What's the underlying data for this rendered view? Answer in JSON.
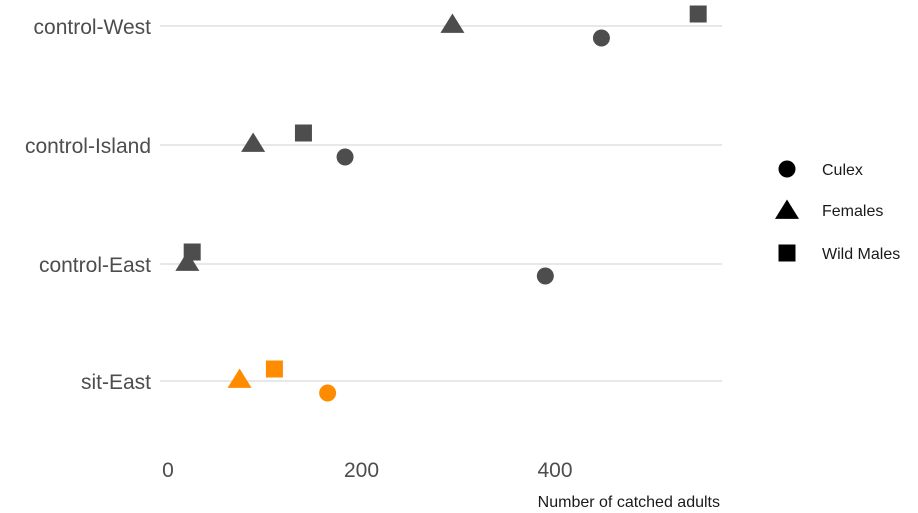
{
  "chart_data": {
    "type": "scatter",
    "title": "",
    "xlabel": "Number of catched adults",
    "ylabel": "",
    "xlim": [
      -8,
      570
    ],
    "xticks": [
      0,
      200,
      400
    ],
    "categories": [
      "control-West",
      "control-Island",
      "control-East",
      "sit-East"
    ],
    "grid": "horizontal",
    "legend": {
      "position": "right",
      "entries": [
        {
          "name": "Culex",
          "shape": "circle"
        },
        {
          "name": "Females",
          "shape": "triangle"
        },
        {
          "name": "Wild Males",
          "shape": "square"
        }
      ]
    },
    "colors": {
      "control": "#4d4d4d",
      "sit": "#ff8c00"
    },
    "series": [
      {
        "name": "Culex",
        "shape": "circle",
        "values": [
          448,
          183,
          390,
          165
        ]
      },
      {
        "name": "Females",
        "shape": "triangle",
        "values": [
          294,
          88,
          20,
          74
        ]
      },
      {
        "name": "Wild Males",
        "shape": "square",
        "values": [
          548,
          140,
          25,
          110
        ]
      }
    ]
  }
}
